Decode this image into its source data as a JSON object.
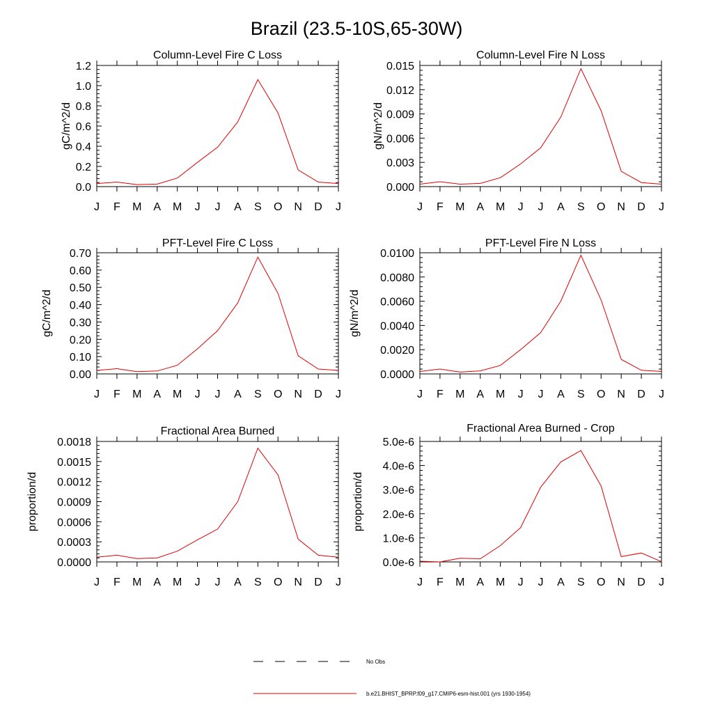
{
  "page_title": "Brazil (23.5-10S,65-30W)",
  "legend": {
    "position": "bottom-center",
    "items": [
      {
        "label": "No Obs",
        "style": "dashed",
        "color": "#000000"
      },
      {
        "label": "b.e21.BHIST_BPRP.f09_g17.CMIP6-esm-hist.001 (yrs 1930-1954)",
        "style": "solid",
        "color": "#e00000"
      }
    ]
  },
  "colors": {
    "series": "#e00000",
    "axis": "#000000"
  },
  "chart_data": [
    {
      "type": "line",
      "title": "Column-Level Fire C Loss",
      "ylabel": "gC/m^2/d",
      "x": [
        "J",
        "F",
        "M",
        "A",
        "M",
        "J",
        "J",
        "A",
        "S",
        "O",
        "N",
        "D",
        "J"
      ],
      "ylim": [
        0,
        1.2
      ],
      "yticks": [
        "0.0",
        "0.2",
        "0.4",
        "0.6",
        "0.8",
        "1.0",
        "1.2"
      ],
      "series": [
        {
          "values": [
            0.03,
            0.045,
            0.02,
            0.025,
            0.085,
            0.24,
            0.39,
            0.64,
            1.06,
            0.73,
            0.165,
            0.045,
            0.03
          ]
        }
      ]
    },
    {
      "type": "line",
      "title": "Column-Level Fire N Loss",
      "ylabel": "gN/m^2/d",
      "x": [
        "J",
        "F",
        "M",
        "A",
        "M",
        "J",
        "J",
        "A",
        "S",
        "O",
        "N",
        "D",
        "J"
      ],
      "ylim": [
        0,
        0.015
      ],
      "yticks": [
        "0.000",
        "0.003",
        "0.006",
        "0.009",
        "0.012",
        "0.015"
      ],
      "series": [
        {
          "values": [
            0.0003,
            0.0006,
            0.0003,
            0.0004,
            0.0011,
            0.0028,
            0.0048,
            0.0086,
            0.0146,
            0.0094,
            0.0019,
            0.0005,
            0.0003
          ]
        }
      ]
    },
    {
      "type": "line",
      "title": "PFT-Level Fire C Loss",
      "ylabel": "gC/m^2/d",
      "x": [
        "J",
        "F",
        "M",
        "A",
        "M",
        "J",
        "J",
        "A",
        "S",
        "O",
        "N",
        "D",
        "J"
      ],
      "ylim": [
        0,
        0.7
      ],
      "yticks": [
        "0.00",
        "0.10",
        "0.20",
        "0.30",
        "0.40",
        "0.50",
        "0.60",
        "0.70"
      ],
      "series": [
        {
          "values": [
            0.02,
            0.03,
            0.013,
            0.017,
            0.05,
            0.145,
            0.25,
            0.41,
            0.675,
            0.465,
            0.105,
            0.028,
            0.02
          ]
        }
      ]
    },
    {
      "type": "line",
      "title": "PFT-Level Fire N Loss",
      "ylabel": "gN/m^2/d",
      "x": [
        "J",
        "F",
        "M",
        "A",
        "M",
        "J",
        "J",
        "A",
        "S",
        "O",
        "N",
        "D",
        "J"
      ],
      "ylim": [
        0,
        0.01
      ],
      "yticks": [
        "0.0000",
        "0.0020",
        "0.0040",
        "0.0060",
        "0.0080",
        "0.0100"
      ],
      "series": [
        {
          "values": [
            0.0002,
            0.0004,
            0.00015,
            0.00025,
            0.0007,
            0.002,
            0.0034,
            0.006,
            0.0098,
            0.0061,
            0.0012,
            0.0003,
            0.0002
          ]
        }
      ]
    },
    {
      "type": "line",
      "title": "Fractional Area Burned",
      "ylabel": "proportion/d",
      "x": [
        "J",
        "F",
        "M",
        "A",
        "M",
        "J",
        "J",
        "A",
        "S",
        "O",
        "N",
        "D",
        "J"
      ],
      "ylim": [
        0,
        0.0018
      ],
      "yticks": [
        "0.0000",
        "0.0003",
        "0.0006",
        "0.0009",
        "0.0012",
        "0.0015",
        "0.0018"
      ],
      "series": [
        {
          "values": [
            7e-05,
            0.0001,
            5e-05,
            6e-05,
            0.00016,
            0.00033,
            0.00049,
            0.0009,
            0.0017,
            0.0013,
            0.00034,
            0.0001,
            7e-05
          ]
        }
      ]
    },
    {
      "type": "line",
      "title": "Fractional Area Burned - Crop",
      "ylabel": "proportion/d",
      "x": [
        "J",
        "F",
        "M",
        "A",
        "M",
        "J",
        "J",
        "A",
        "S",
        "O",
        "N",
        "D",
        "J"
      ],
      "ylim": [
        0,
        5e-06
      ],
      "yticks": [
        "0.0e-6",
        "1.0e-6",
        "2.0e-6",
        "3.0e-6",
        "4.0e-6",
        "5.0e-6"
      ],
      "series": [
        {
          "values": [
            3e-08,
            0.0,
            1.5e-07,
            1.3e-07,
            6.8e-07,
            1.42e-06,
            3.1e-06,
            4.15e-06,
            4.62e-06,
            3.15e-06,
            2.2e-07,
            3.7e-07,
            1e-08
          ]
        }
      ]
    }
  ]
}
